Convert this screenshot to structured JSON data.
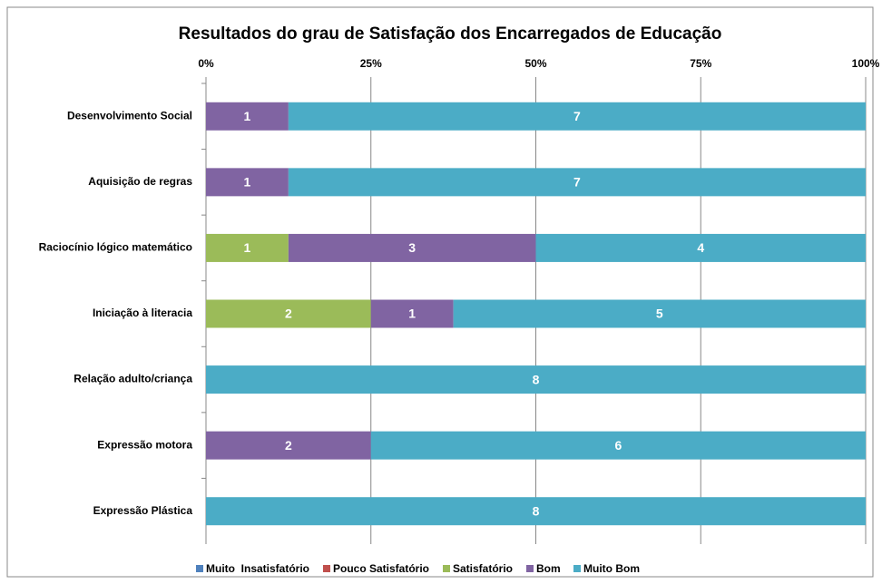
{
  "chart_data": {
    "type": "bar",
    "orientation": "horizontal",
    "stacked": "percent",
    "title": "Resultados do grau de Satisfação dos Encarregados de Educação",
    "categories": [
      "Desenvolvimento Social",
      "Aquisição de regras",
      "Raciocínio lógico matemático",
      "Iniciação à literacia",
      "Relação adulto/criança",
      "Expressão motora",
      "Expressão Plástica"
    ],
    "series": [
      {
        "name": "Muito  Insatisfatório",
        "color": "#4f81bd",
        "values": [
          0,
          0,
          0,
          0,
          0,
          0,
          0
        ]
      },
      {
        "name": "Pouco Satisfatório",
        "color": "#c0504d",
        "values": [
          0,
          0,
          0,
          0,
          0,
          0,
          0
        ]
      },
      {
        "name": "Satisfatório",
        "color": "#9bbb59",
        "values": [
          0,
          0,
          1,
          2,
          0,
          0,
          0
        ]
      },
      {
        "name": "Bom",
        "color": "#8064a2",
        "values": [
          1,
          1,
          3,
          1,
          0,
          2,
          0
        ]
      },
      {
        "name": "Muito Bom",
        "color": "#4bacc6",
        "values": [
          7,
          7,
          4,
          5,
          8,
          6,
          8
        ]
      }
    ],
    "xlim": [
      0,
      100
    ],
    "xticks": [
      {
        "value": 0,
        "label": "0%"
      },
      {
        "value": 25,
        "label": "25%"
      },
      {
        "value": 50,
        "label": "50%"
      },
      {
        "value": 75,
        "label": "75%"
      },
      {
        "value": 100,
        "label": "100%"
      }
    ],
    "grid": true,
    "legend": "bottom"
  }
}
